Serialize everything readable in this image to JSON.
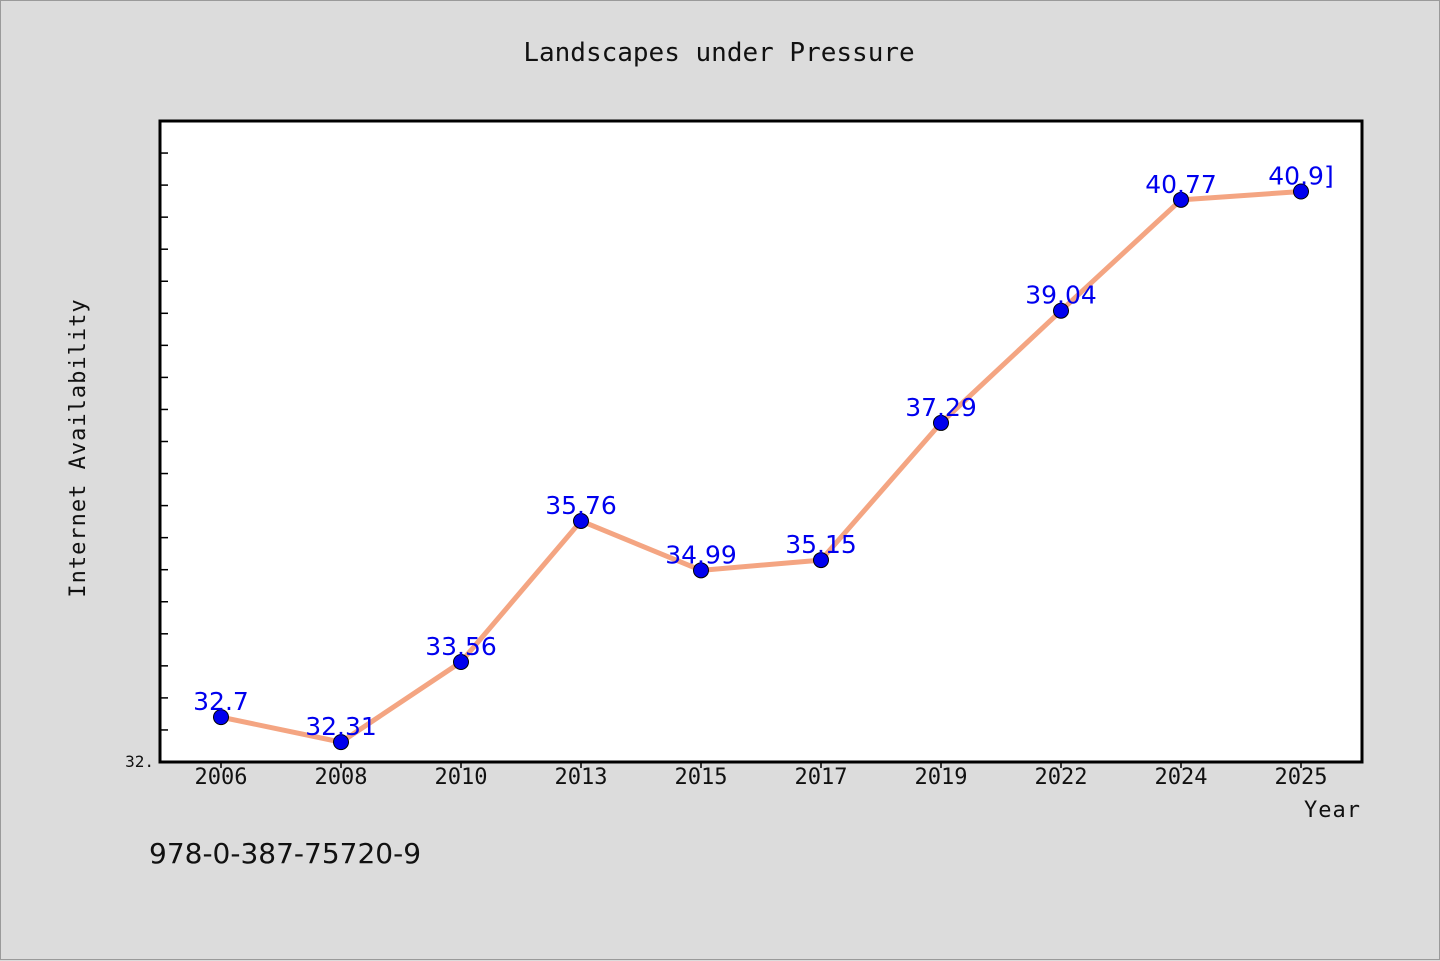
{
  "footer_text": "978-0-387-75720-9",
  "colors": {
    "background": "#dcdcdc",
    "plot_background": "#ffffff",
    "line": "#f4a582",
    "marker": "#0000ee",
    "data_label": "#0000ee"
  },
  "chart_data": {
    "type": "line",
    "title": "Landscapes under Pressure",
    "xlabel": "Year",
    "ylabel": "Internet Availability",
    "categories": [
      "2006",
      "2008",
      "2010",
      "2013",
      "2015",
      "2017",
      "2019",
      "2022",
      "2024",
      "2025"
    ],
    "series": [
      {
        "values": [
          32.7,
          32.31,
          33.56,
          35.76,
          34.99,
          35.15,
          37.29,
          39.04,
          40.77,
          40.9
        ]
      }
    ],
    "data_labels": [
      "32.7",
      "32.31",
      "33.56",
      "35.76",
      "34.99",
      "35.15",
      "37.29",
      "39.04",
      "40.77",
      "40.9]"
    ],
    "y_min_label": "32.",
    "ylim": [
      32.0,
      42.0
    ],
    "grid": false,
    "legend": "none"
  }
}
